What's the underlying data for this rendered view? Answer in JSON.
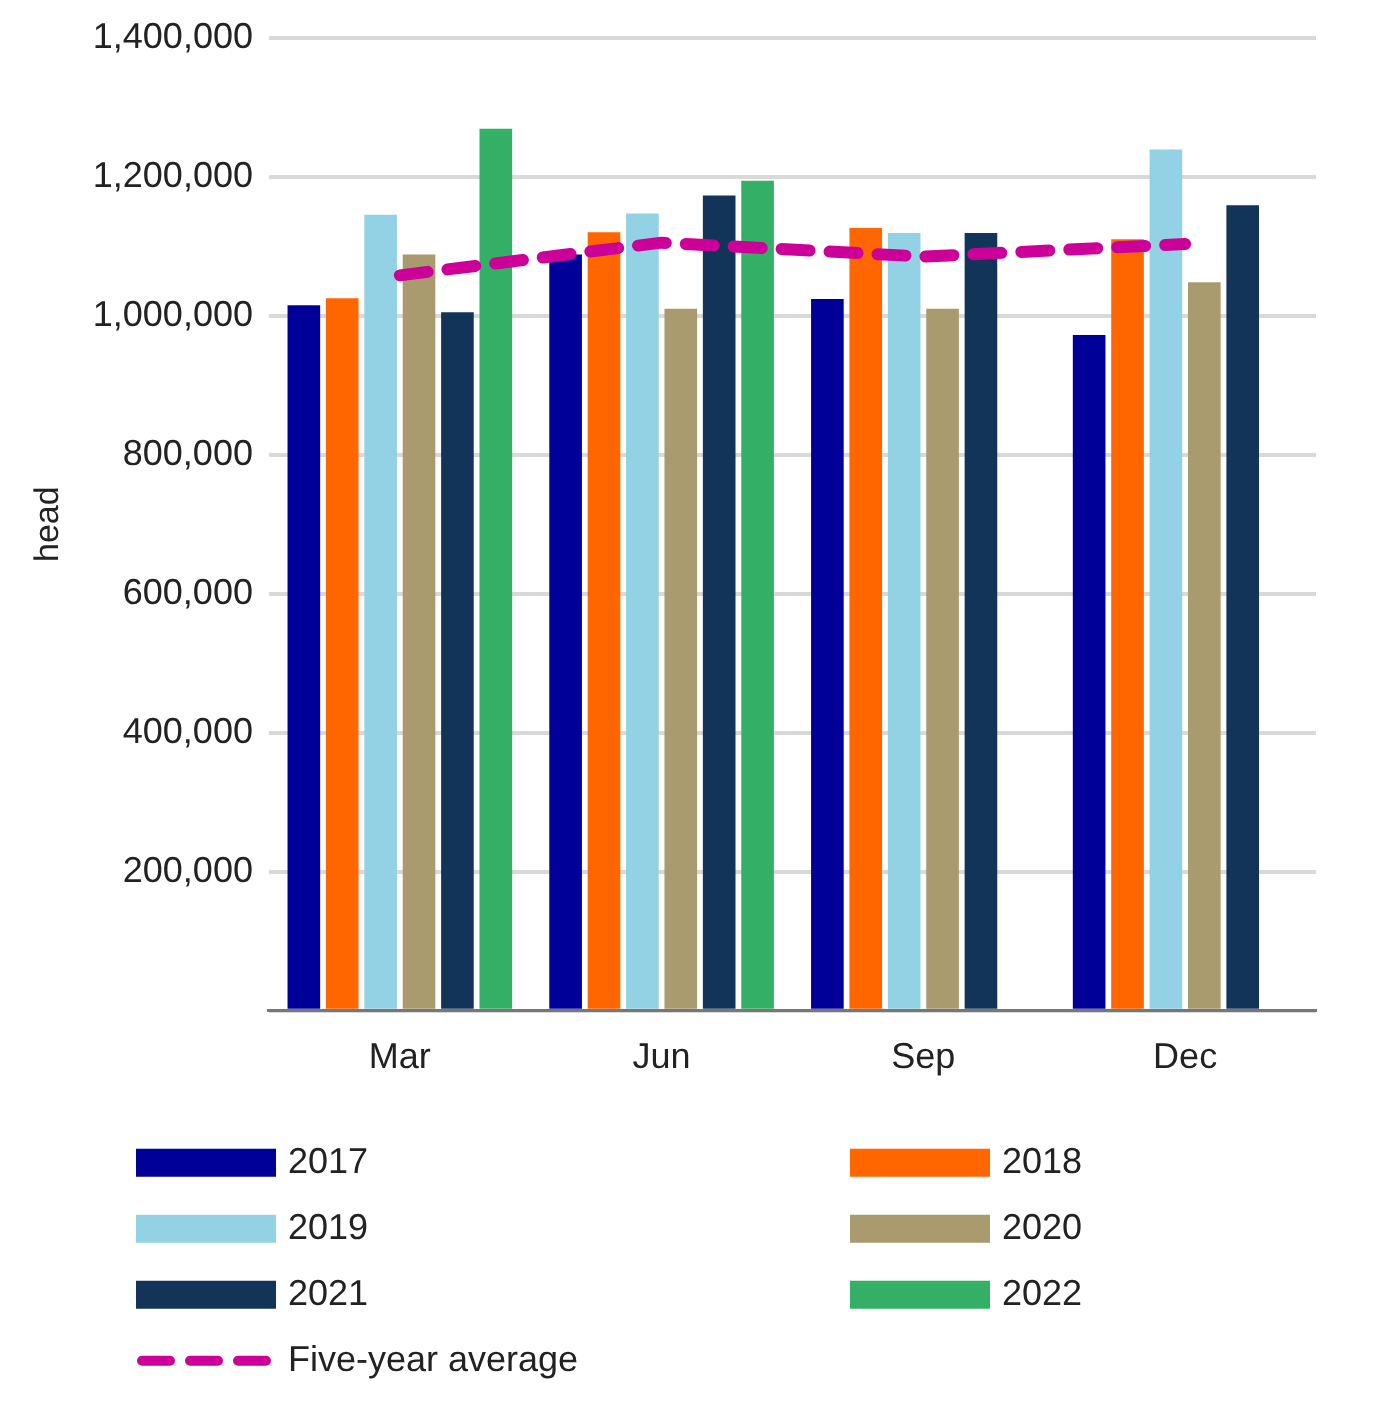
{
  "chart_data": {
    "type": "bar",
    "ylabel": "head",
    "categories": [
      "Mar",
      "Jun",
      "Sep",
      "Dec"
    ],
    "series": [
      {
        "name": "2017",
        "color": "#000099",
        "values": [
          1015000,
          1088000,
          1024000,
          972000
        ]
      },
      {
        "name": "2018",
        "color": "#ff6600",
        "values": [
          1025000,
          1120000,
          1126000,
          1110000
        ]
      },
      {
        "name": "2019",
        "color": "#93d1e4",
        "values": [
          1145000,
          1147000,
          1119000,
          1239000
        ]
      },
      {
        "name": "2020",
        "color": "#a99b6e",
        "values": [
          1088000,
          1010000,
          1010000,
          1048000
        ]
      },
      {
        "name": "2021",
        "color": "#133459",
        "values": [
          1005000,
          1173000,
          1119000,
          1159000
        ]
      },
      {
        "name": "2022",
        "color": "#33b065",
        "values": [
          1269000,
          1194000,
          null,
          null
        ]
      },
      {
        "name": "Five-year average",
        "type": "line",
        "color": "#cc0099",
        "line_style": "dashed",
        "marker": "none",
        "values": [
          1058000,
          1105000,
          1085000,
          1103000
        ]
      }
    ],
    "ylim": [
      0,
      1400000
    ],
    "yticks": [
      {
        "value": 0,
        "label": null
      },
      {
        "value": 200000,
        "label": "200,000"
      },
      {
        "value": 400000,
        "label": "400,000"
      },
      {
        "value": 600000,
        "label": "600,000"
      },
      {
        "value": 800000,
        "label": "800,000"
      },
      {
        "value": 1000000,
        "label": "1,000,000"
      },
      {
        "value": 1200000,
        "label": "1,200,000"
      },
      {
        "value": 1400000,
        "label": "1,400,000"
      }
    ],
    "grid": "y",
    "legend": "bottom"
  }
}
